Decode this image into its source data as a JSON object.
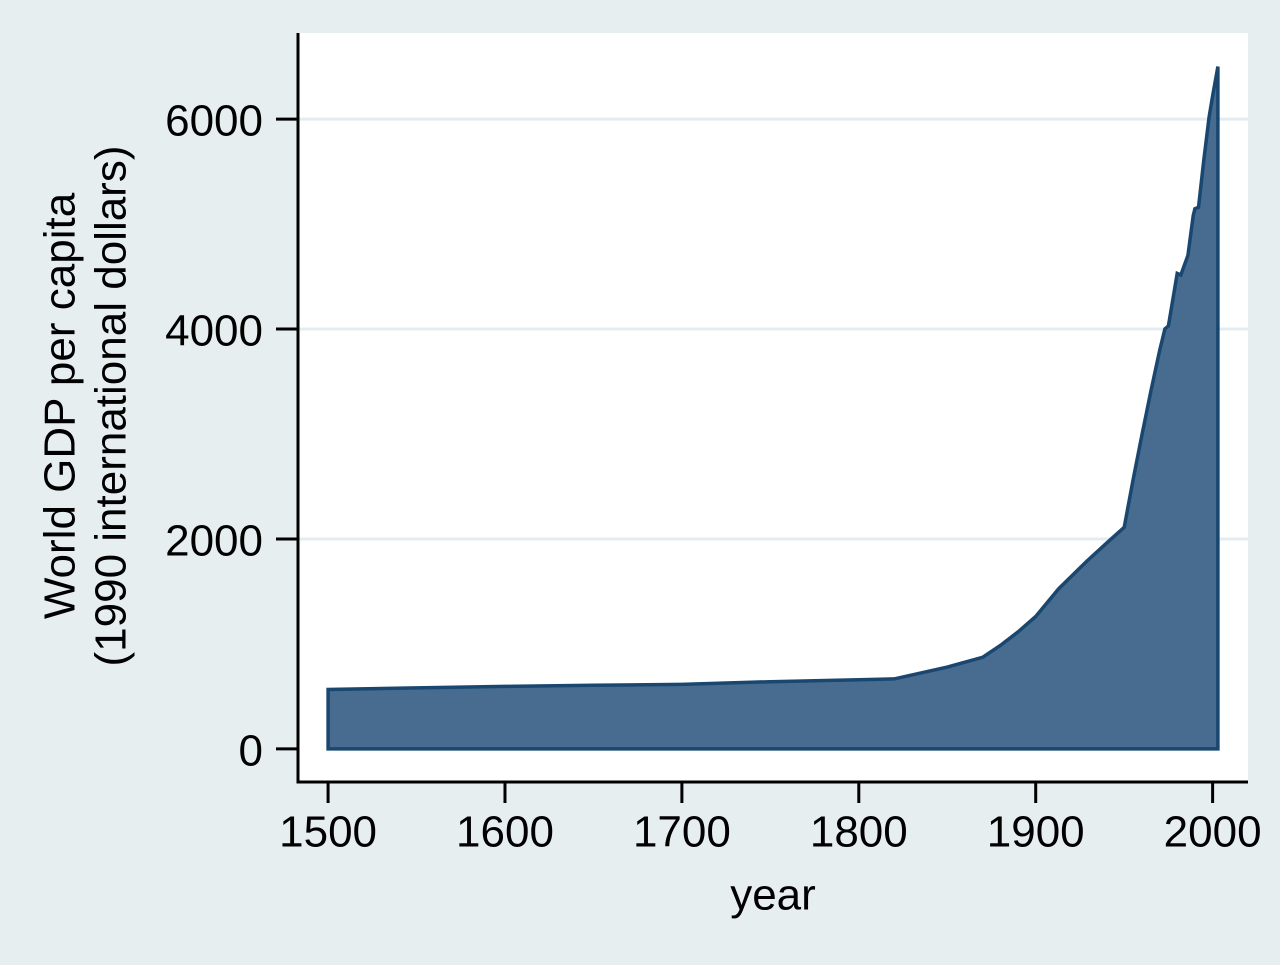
{
  "figure": {
    "background_color": "#e7eef0",
    "plot_background_color": "#ffffff",
    "grid_color": "#e3edf1",
    "axis_color": "#000000",
    "text_color": "#000000",
    "area_fill_color": "#476c8f",
    "area_stroke_color": "#1a476f"
  },
  "chart_data": {
    "type": "area",
    "title": "",
    "xlabel": "year",
    "ylabel": "World GDP per capita (1990 international dollars)",
    "ylabel_lines": [
      "World GDP per capita",
      "(1990 international dollars)"
    ],
    "x_ticks": [
      1500,
      1600,
      1700,
      1800,
      1900,
      2000
    ],
    "y_ticks": [
      0,
      2000,
      4000,
      6000
    ],
    "xlim": [
      1483,
      2020
    ],
    "ylim": [
      -315,
      6820
    ],
    "grid": "horizontal gridlines at labeled y ticks (not at 0), legend none",
    "baseline": 0,
    "series": [
      {
        "name": "World GDP per capita (1990 international dollars)",
        "points": [
          [
            1500,
            566
          ],
          [
            1550,
            581
          ],
          [
            1600,
            596
          ],
          [
            1650,
            606
          ],
          [
            1700,
            615
          ],
          [
            1750,
            640
          ],
          [
            1800,
            659
          ],
          [
            1820,
            667
          ],
          [
            1850,
            780
          ],
          [
            1870,
            873
          ],
          [
            1880,
            985
          ],
          [
            1890,
            1115
          ],
          [
            1900,
            1262
          ],
          [
            1913,
            1526
          ],
          [
            1929,
            1790
          ],
          [
            1940,
            1960
          ],
          [
            1950,
            2111
          ],
          [
            1955,
            2560
          ],
          [
            1960,
            2990
          ],
          [
            1965,
            3400
          ],
          [
            1970,
            3790
          ],
          [
            1973,
            4000
          ],
          [
            1975,
            4030
          ],
          [
            1978,
            4330
          ],
          [
            1980,
            4530
          ],
          [
            1982,
            4515
          ],
          [
            1986,
            4700
          ],
          [
            1989,
            5080
          ],
          [
            1990,
            5145
          ],
          [
            1992,
            5160
          ],
          [
            1995,
            5610
          ],
          [
            1998,
            6020
          ],
          [
            2000,
            6220
          ],
          [
            2003,
            6500
          ]
        ]
      }
    ]
  }
}
